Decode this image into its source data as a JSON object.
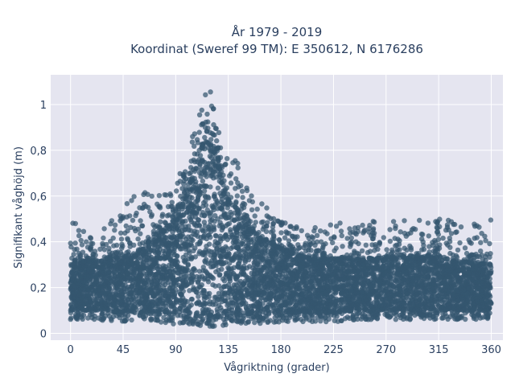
{
  "chart_data": {
    "type": "scatter",
    "title_line1": "År 1979 - 2019",
    "title_line2": "Koordinat (Sweref 99 TM): E 350612, N 6176286",
    "xlabel": "Vågriktning (grader)",
    "ylabel": "Signifikant våghöjd (m)",
    "xlim": [
      -17,
      370
    ],
    "ylim": [
      -0.03,
      1.13
    ],
    "x_ticks": [
      0,
      45,
      90,
      135,
      180,
      225,
      270,
      315,
      360
    ],
    "y_ticks": [
      0,
      0.2,
      0.4,
      0.6,
      0.8,
      1
    ],
    "y_tick_labels": [
      "0",
      "0,2",
      "0,4",
      "0,6",
      "0,8",
      "1"
    ],
    "grid": true,
    "marker_color": "#34566f",
    "plot_bg": "#e5e5f0",
    "envelope": {
      "x": [
        0,
        20,
        45,
        60,
        75,
        90,
        100,
        110,
        115,
        120,
        130,
        140,
        150,
        160,
        180,
        200,
        225,
        250,
        270,
        300,
        315,
        340,
        360
      ],
      "y_max": [
        0.5,
        0.42,
        0.55,
        0.65,
        0.6,
        0.64,
        0.83,
        0.98,
        1.09,
        1.06,
        0.84,
        0.8,
        0.65,
        0.6,
        0.5,
        0.45,
        0.5,
        0.5,
        0.49,
        0.5,
        0.52,
        0.48,
        0.5
      ],
      "y_dense_top": [
        0.3,
        0.32,
        0.33,
        0.37,
        0.42,
        0.5,
        0.62,
        0.76,
        0.84,
        0.82,
        0.68,
        0.56,
        0.47,
        0.42,
        0.37,
        0.33,
        0.32,
        0.32,
        0.33,
        0.33,
        0.33,
        0.31,
        0.3
      ],
      "y_min": [
        0.06,
        0.06,
        0.05,
        0.05,
        0.05,
        0.04,
        0.03,
        0.03,
        0.03,
        0.03,
        0.03,
        0.04,
        0.04,
        0.04,
        0.05,
        0.05,
        0.05,
        0.06,
        0.06,
        0.06,
        0.06,
        0.06,
        0.06
      ]
    }
  }
}
